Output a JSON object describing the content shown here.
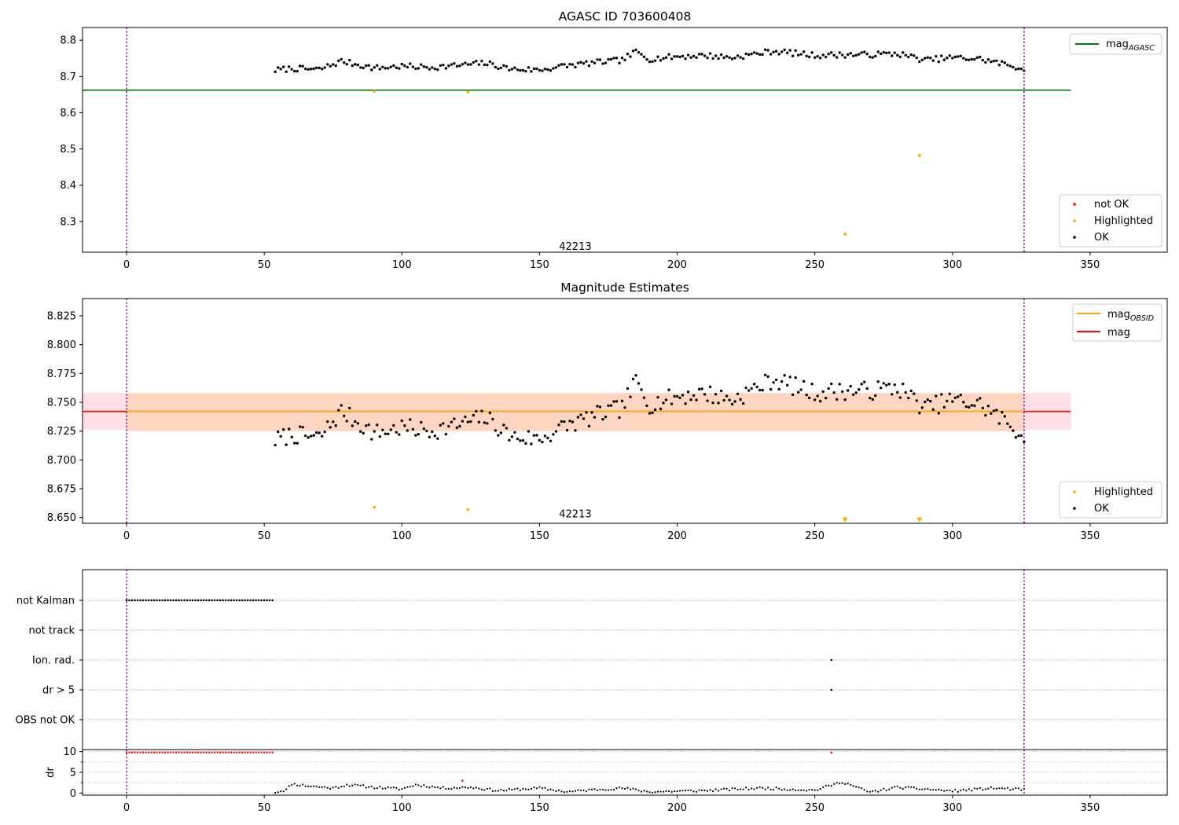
{
  "chart_data": [
    {
      "type": "scatter",
      "title": "AGASC ID 703600408",
      "xlim": [
        -16,
        378
      ],
      "ylim": [
        8.215,
        8.835
      ],
      "xticks": [
        0,
        50,
        100,
        150,
        200,
        250,
        300,
        350
      ],
      "yticks": [
        8.3,
        8.4,
        8.5,
        8.6,
        8.7,
        8.8
      ],
      "annotation": {
        "text": "42213",
        "x": 163,
        "y": 8.23
      },
      "vlines": [
        0,
        326
      ],
      "hlines": [
        {
          "name": "mag_AGASC",
          "y": 8.662,
          "x": [
            -16,
            343
          ],
          "color": "#008000"
        }
      ],
      "legend_upper": [
        {
          "label": "mag",
          "sub": "AGASC",
          "color": "#008000"
        }
      ],
      "legend_lower": [
        {
          "label": "not OK",
          "color": "#ff0000"
        },
        {
          "label": "Highlighted",
          "color": "#ffa500"
        },
        {
          "label": "OK",
          "color": "#000000"
        }
      ],
      "series": [
        {
          "name": "OK",
          "color": "#000000",
          "x_range": [
            54,
            326
          ],
          "profile_x": [
            54,
            60,
            70,
            78,
            90,
            100,
            110,
            120,
            130,
            140,
            150,
            160,
            170,
            180,
            185,
            190,
            200,
            210,
            220,
            235,
            250,
            260,
            270,
            280,
            290,
            300,
            310,
            320,
            326
          ],
          "profile_y": [
            8.717,
            8.722,
            8.719,
            8.742,
            8.723,
            8.728,
            8.725,
            8.73,
            8.737,
            8.72,
            8.718,
            8.73,
            8.738,
            8.745,
            8.768,
            8.748,
            8.755,
            8.758,
            8.752,
            8.77,
            8.758,
            8.76,
            8.76,
            8.763,
            8.745,
            8.752,
            8.748,
            8.732,
            8.72
          ]
        },
        {
          "name": "Highlighted",
          "color": "#ffa500",
          "x": [
            90,
            124,
            261,
            288
          ],
          "y": [
            8.659,
            8.657,
            8.265,
            8.482
          ]
        },
        {
          "name": "not OK",
          "color": "#ff0000",
          "x": [],
          "y": []
        }
      ]
    },
    {
      "type": "scatter",
      "title": "Magnitude Estimates",
      "xlim": [
        -16,
        378
      ],
      "ylim": [
        8.645,
        8.84
      ],
      "xticks": [
        0,
        50,
        100,
        150,
        200,
        250,
        300,
        350
      ],
      "yticks": [
        8.65,
        8.675,
        8.7,
        8.725,
        8.75,
        8.775,
        8.8,
        8.825
      ],
      "ytick_labels": [
        "8.650",
        "8.675",
        "8.700",
        "8.725",
        "8.750",
        "8.775",
        "8.800",
        "8.825"
      ],
      "annotation": {
        "text": "42213",
        "x": 163,
        "y": 8.653
      },
      "vlines": [
        0,
        326
      ],
      "bands": [
        {
          "name": "mag band",
          "y": [
            8.726,
            8.758
          ],
          "x": [
            -16,
            343
          ],
          "color": "#ffe0e6"
        },
        {
          "name": "mag_OBSID band",
          "y": [
            8.725,
            8.758
          ],
          "x": [
            0,
            326
          ],
          "color": "#ffd6c2"
        }
      ],
      "hlines": [
        {
          "name": "mag",
          "y": 8.742,
          "x": [
            -16,
            343
          ],
          "color": "#ff0000"
        },
        {
          "name": "mag_OBSID",
          "y": 8.742,
          "x": [
            0,
            326
          ],
          "color": "#ffa500"
        }
      ],
      "legend_upper": [
        {
          "label": "mag",
          "sub": "OBSID",
          "color": "#ffa500"
        },
        {
          "label": "mag",
          "sub": "",
          "color": "#ff0000"
        }
      ],
      "legend_lower": [
        {
          "label": "Highlighted",
          "color": "#ffa500"
        },
        {
          "label": "OK",
          "color": "#000000"
        }
      ],
      "series": [
        {
          "name": "OK",
          "color": "#000000",
          "x_range": [
            54,
            326
          ],
          "profile_x": [
            54,
            60,
            70,
            78,
            90,
            100,
            110,
            120,
            130,
            140,
            150,
            160,
            170,
            180,
            185,
            190,
            200,
            210,
            220,
            235,
            250,
            260,
            270,
            280,
            290,
            300,
            310,
            320,
            326
          ],
          "profile_y": [
            8.717,
            8.722,
            8.719,
            8.742,
            8.723,
            8.728,
            8.725,
            8.73,
            8.737,
            8.72,
            8.718,
            8.73,
            8.738,
            8.745,
            8.768,
            8.748,
            8.755,
            8.758,
            8.752,
            8.77,
            8.758,
            8.76,
            8.76,
            8.763,
            8.745,
            8.752,
            8.748,
            8.732,
            8.72
          ]
        },
        {
          "name": "Highlighted",
          "color": "#ffa500",
          "x": [
            90,
            124
          ],
          "y": [
            8.659,
            8.657
          ]
        },
        {
          "name": "Highlighted (below range)",
          "color": "#ffa500",
          "marker": "triangle-down",
          "x": [
            261,
            288
          ],
          "y": [
            8.648,
            8.648
          ]
        }
      ]
    },
    {
      "type": "scatter",
      "title": "",
      "xlim": [
        -16,
        378
      ],
      "categories": [
        "not Kalman",
        "not track",
        "Ion. rad.",
        "dr > 5",
        "OBS not OK"
      ],
      "vlines": [
        0,
        326
      ],
      "series": [
        {
          "name": "not Kalman",
          "color": "#000000",
          "x_range": [
            0,
            53
          ],
          "step": 1
        },
        {
          "name": "Ion. rad.",
          "color": "#000000",
          "x": [
            256
          ]
        },
        {
          "name": "dr > 5",
          "color": "#000000",
          "x": [
            256
          ]
        }
      ]
    },
    {
      "type": "scatter",
      "title": "",
      "ylabel": "dr",
      "xlim": [
        -16,
        378
      ],
      "ylim": [
        -0.5,
        10.5
      ],
      "xticks": [
        0,
        50,
        100,
        150,
        200,
        250,
        300,
        350
      ],
      "yticks": [
        0,
        5,
        10
      ],
      "vlines": [
        0,
        326
      ],
      "series": [
        {
          "name": "not OK",
          "color": "#ff0000",
          "x_range": [
            0,
            53
          ],
          "step": 1,
          "y_const": 9.8,
          "extra_x": [
            122,
            256
          ],
          "extra_y": [
            3.0,
            9.8
          ]
        },
        {
          "name": "OK",
          "color": "#000000",
          "x_range": [
            54,
            326
          ],
          "profile_x": [
            54,
            58,
            60,
            65,
            75,
            80,
            90,
            100,
            105,
            115,
            125,
            135,
            150,
            160,
            170,
            180,
            190,
            210,
            230,
            250,
            260,
            270,
            280,
            300,
            315,
            326
          ],
          "profile_y": [
            0.2,
            0.8,
            2.2,
            1.8,
            1.2,
            2.0,
            1.4,
            1.0,
            2.0,
            1.2,
            1.4,
            0.6,
            1.2,
            0.3,
            0.8,
            1.2,
            0.3,
            0.6,
            1.2,
            0.7,
            2.7,
            0.2,
            1.4,
            0.5,
            1.2,
            0.8
          ]
        }
      ]
    }
  ]
}
